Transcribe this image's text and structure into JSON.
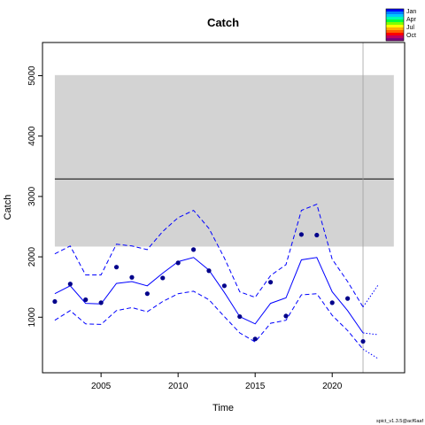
{
  "chart_data": {
    "type": "line",
    "title": "Catch",
    "xlabel": "Time",
    "ylabel": "Catch",
    "xlim": [
      2001.2,
      2024.7
    ],
    "ylim": [
      80,
      5550
    ],
    "x_ticks": [
      2005,
      2010,
      2015,
      2020
    ],
    "y_ticks": [
      1000,
      2000,
      3000,
      4000,
      5000
    ],
    "grid": false,
    "reference_band": {
      "x": [
        2002,
        2024
      ],
      "ymin": 2170,
      "ymax": 5010,
      "color": "#d3d3d3"
    },
    "reference_line": {
      "y": 3290,
      "x": [
        2002,
        2024
      ],
      "color": "#000000"
    },
    "vertical_line": {
      "x": 2022,
      "color": "#a0a0a0"
    },
    "series": [
      {
        "role": "observed",
        "style": "points",
        "color": "#00008b",
        "x": [
          2002,
          2003,
          2004,
          2005,
          2006,
          2007,
          2008,
          2009,
          2010,
          2011,
          2012,
          2013,
          2014,
          2015,
          2016,
          2017,
          2018,
          2019,
          2020,
          2021,
          2022
        ],
        "values": [
          1260,
          1550,
          1290,
          1240,
          1830,
          1660,
          1390,
          1650,
          1900,
          2120,
          1770,
          1520,
          1010,
          640,
          1580,
          1020,
          2370,
          2360,
          1240,
          1310,
          600
        ]
      },
      {
        "role": "estimate",
        "style": "solid",
        "color": "#0000ff",
        "x": [
          2002,
          2003,
          2004,
          2005,
          2006,
          2007,
          2008,
          2009,
          2010,
          2011,
          2012,
          2013,
          2014,
          2015,
          2016,
          2017,
          2018,
          2019,
          2020,
          2021,
          2022
        ],
        "values": [
          1390,
          1520,
          1230,
          1220,
          1560,
          1590,
          1520,
          1730,
          1920,
          1990,
          1780,
          1410,
          1010,
          890,
          1230,
          1320,
          1950,
          1990,
          1420,
          1110,
          740
        ]
      },
      {
        "role": "upper-ci",
        "style": "dashed",
        "color": "#0000ff",
        "x": [
          2002,
          2003,
          2004,
          2005,
          2006,
          2007,
          2008,
          2009,
          2010,
          2011,
          2012,
          2013,
          2014,
          2015,
          2016,
          2017,
          2018,
          2019,
          2020,
          2021,
          2022
        ],
        "values": [
          2050,
          2180,
          1700,
          1700,
          2210,
          2180,
          2120,
          2420,
          2650,
          2770,
          2470,
          1980,
          1420,
          1330,
          1690,
          1870,
          2770,
          2870,
          1960,
          1590,
          1170
        ]
      },
      {
        "role": "lower-ci",
        "style": "dashed",
        "color": "#0000ff",
        "x": [
          2002,
          2003,
          2004,
          2005,
          2006,
          2007,
          2008,
          2009,
          2010,
          2011,
          2012,
          2013,
          2014,
          2015,
          2016,
          2017,
          2018,
          2019,
          2020,
          2021,
          2022
        ],
        "values": [
          950,
          1110,
          890,
          880,
          1110,
          1160,
          1090,
          1260,
          1390,
          1430,
          1290,
          1010,
          740,
          590,
          900,
          950,
          1370,
          1390,
          1030,
          780,
          470
        ]
      },
      {
        "role": "forecast",
        "style": "dotted",
        "color": "#0000ff",
        "x": [
          2022,
          2023
        ],
        "values": [
          740,
          710
        ]
      },
      {
        "role": "forecast-upper",
        "style": "dotted",
        "color": "#0000ff",
        "x": [
          2022,
          2023
        ],
        "values": [
          1170,
          1540
        ]
      },
      {
        "role": "forecast-lower",
        "style": "dotted",
        "color": "#0000ff",
        "x": [
          2022,
          2023
        ],
        "values": [
          470,
          310
        ]
      }
    ],
    "month_legend": {
      "labels": [
        "Jan",
        "Apr",
        "Jul",
        "Oct"
      ],
      "colors": [
        "#0000ff",
        "#0080ff",
        "#00c8ff",
        "#00ffb0",
        "#00ff40",
        "#80ff00",
        "#ffff00",
        "#ffb000",
        "#ff6000",
        "#ff0000",
        "#c00060",
        "#800080"
      ],
      "position": "top-right"
    },
    "footnote": "spict_v1.3.5@acf6aaf"
  }
}
